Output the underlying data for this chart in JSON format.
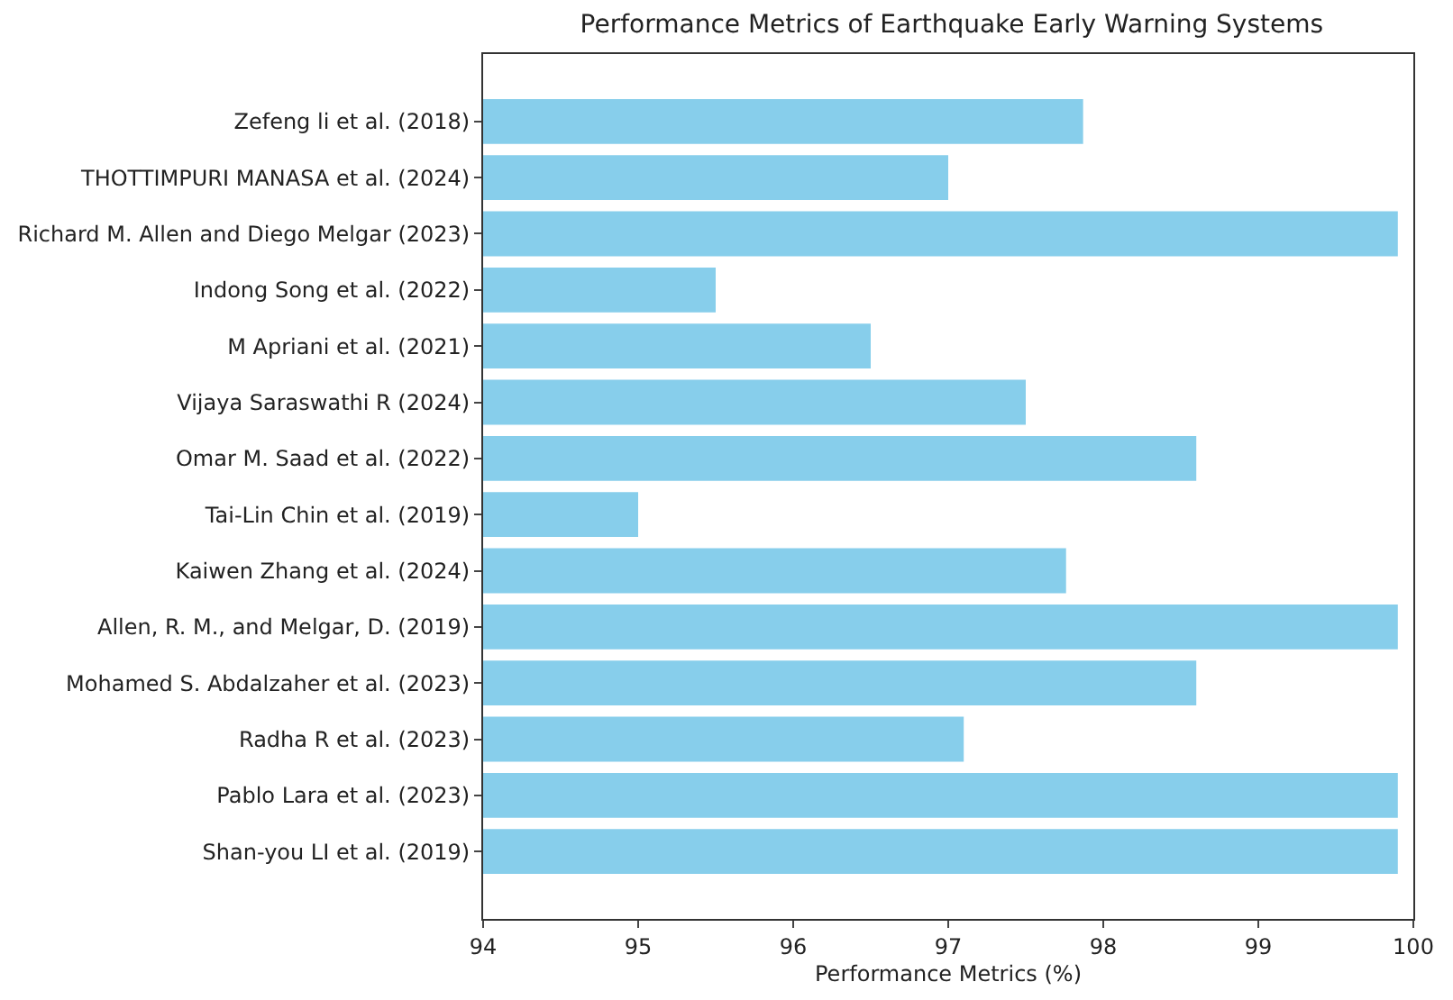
{
  "chart_data": {
    "type": "bar",
    "orientation": "horizontal",
    "title": "Performance Metrics of Earthquake Early Warning Systems",
    "xlabel": "Performance Metrics (%)",
    "categories": [
      "Zefeng li et al. (2018)",
      "THOTTIMPURI MANASA et al. (2024)",
      "Richard M. Allen and Diego Melgar (2023)",
      "Indong Song et al. (2022)",
      "M Apriani et al. (2021)",
      "Vijaya Saraswathi R (2024)",
      "Omar M. Saad et al. (2022)",
      "Tai-Lin Chin et al. (2019)",
      "Kaiwen Zhang et al. (2024)",
      "Allen, R. M., and Melgar, D. (2019)",
      "Mohamed S. Abdalzaher et al. (2023)",
      "Radha R et al. (2023)",
      "Pablo Lara et al. (2023)",
      "Shan-you LI et al. (2019)"
    ],
    "values": [
      97.87,
      97.0,
      99.9,
      95.5,
      96.5,
      97.5,
      98.6,
      95.0,
      97.76,
      99.9,
      98.6,
      97.1,
      99.9,
      99.9
    ],
    "color": "#87ceeb",
    "xlim": [
      94,
      100
    ],
    "xticks": [
      94,
      95,
      96,
      97,
      98,
      99,
      100
    ]
  }
}
